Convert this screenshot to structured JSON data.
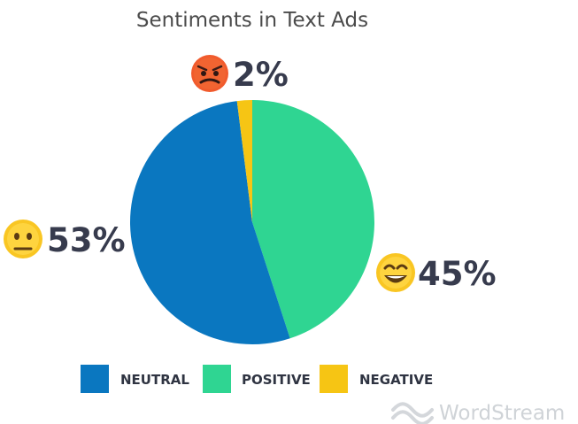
{
  "chart_data": {
    "type": "pie",
    "title": "Sentiments in Text Ads",
    "slices": [
      {
        "label": "NEUTRAL",
        "value": 53,
        "value_label": "53%",
        "color": "#0a77c0",
        "emoji": "neutral-face"
      },
      {
        "label": "POSITIVE",
        "value": 45,
        "value_label": "45%",
        "color": "#2fd592",
        "emoji": "grinning-face"
      },
      {
        "label": "NEGATIVE",
        "value": 2,
        "value_label": "2%",
        "color": "#f6c514",
        "emoji": "angry-face"
      }
    ],
    "legend_position": "bottom"
  },
  "branding": {
    "text": "WordStream",
    "icon": "wordstream-wave-logo",
    "color": "#cfd3d7"
  }
}
